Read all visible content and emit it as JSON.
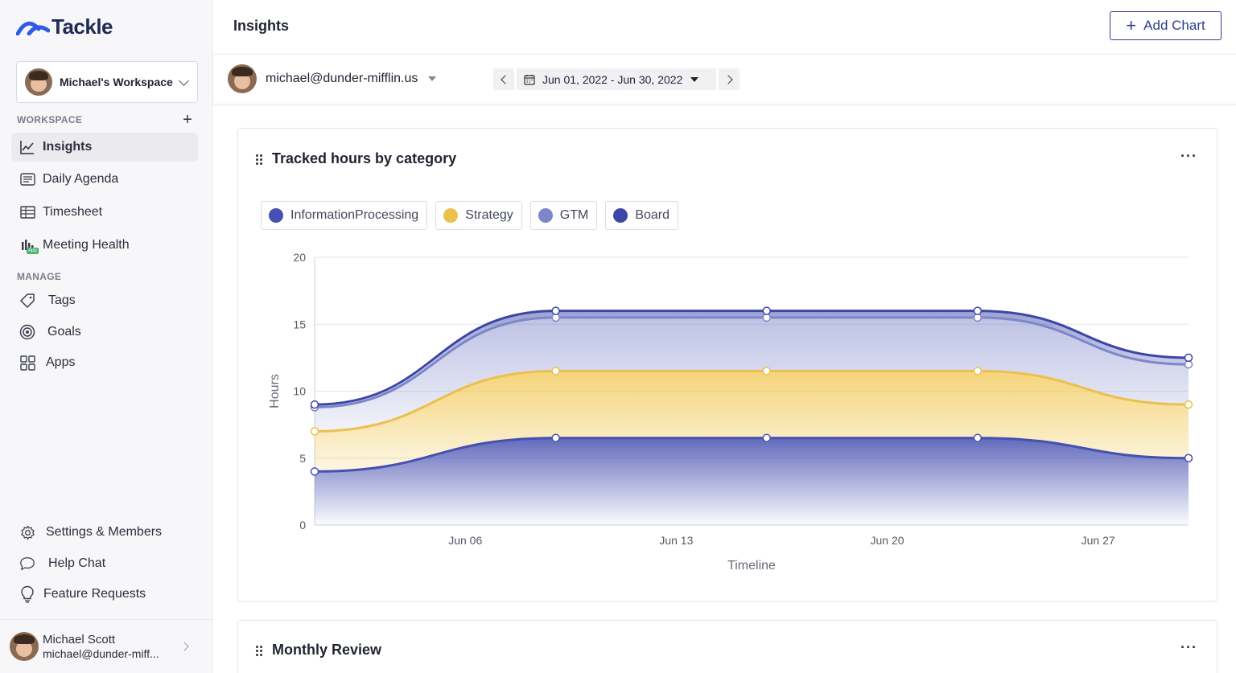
{
  "app": {
    "name": "Tackle"
  },
  "workspace": {
    "name": "Michael's Workspace"
  },
  "sidebar": {
    "workspace_label": "WORKSPACE",
    "manage_label": "MANAGE",
    "items": [
      {
        "label": "Insights",
        "icon": "chart-line-icon"
      },
      {
        "label": "Daily Agenda",
        "icon": "agenda-icon"
      },
      {
        "label": "Timesheet",
        "icon": "table-icon"
      },
      {
        "label": "Meeting Health",
        "icon": "bar-chart-app-icon",
        "badge": "App"
      }
    ],
    "manage_items": [
      {
        "label": "Tags",
        "icon": "tag-icon"
      },
      {
        "label": "Goals",
        "icon": "target-icon"
      },
      {
        "label": "Apps",
        "icon": "grid-icon"
      }
    ],
    "bottom_items": [
      {
        "label": "Settings & Members",
        "icon": "gear-icon"
      },
      {
        "label": "Help Chat",
        "icon": "chat-bubble-icon"
      },
      {
        "label": "Feature Requests",
        "icon": "lightbulb-icon"
      }
    ],
    "user": {
      "name": "Michael Scott",
      "email": "michael@dunder-miff..."
    }
  },
  "header": {
    "title": "Insights",
    "add_chart_label": "Add Chart"
  },
  "filters": {
    "user_email": "michael@dunder-mifflin.us",
    "date_range": "Jun 01, 2022 - Jun 30, 2022"
  },
  "cards": [
    {
      "title": "Tracked hours by category"
    },
    {
      "title": "Monthly Review"
    }
  ],
  "colors": {
    "information_processing": "#4650b0",
    "strategy": "#ebc04c",
    "gtm": "#7c86c9",
    "board": "#3c45a8"
  },
  "chart_data": {
    "type": "area",
    "stacked": true,
    "title": "Tracked hours by category",
    "xlabel": "Timeline",
    "ylabel": "Hours",
    "ylim": [
      0,
      20
    ],
    "yticks": [
      0,
      5,
      10,
      15,
      20
    ],
    "x_tick_labels": [
      "Jun 06",
      "Jun 13",
      "Jun 20",
      "Jun 27"
    ],
    "x_tick_positions": [
      "2022-06-06",
      "2022-06-13",
      "2022-06-20",
      "2022-06-27"
    ],
    "x_range": [
      "2022-06-01",
      "2022-06-30"
    ],
    "x": [
      "2022-06-01",
      "2022-06-09",
      "2022-06-16",
      "2022-06-23",
      "2022-06-30"
    ],
    "grid": true,
    "legend_position": "top-left",
    "series": [
      {
        "name": "InformationProcessing",
        "values": [
          4,
          6.5,
          6.5,
          6.5,
          5
        ]
      },
      {
        "name": "Strategy",
        "values": [
          3,
          5,
          5,
          5,
          4
        ]
      },
      {
        "name": "GTM",
        "values": [
          1.8,
          4,
          4,
          4,
          3
        ]
      },
      {
        "name": "Board",
        "values": [
          0.2,
          0.5,
          0.5,
          0.5,
          0.5
        ]
      }
    ]
  }
}
